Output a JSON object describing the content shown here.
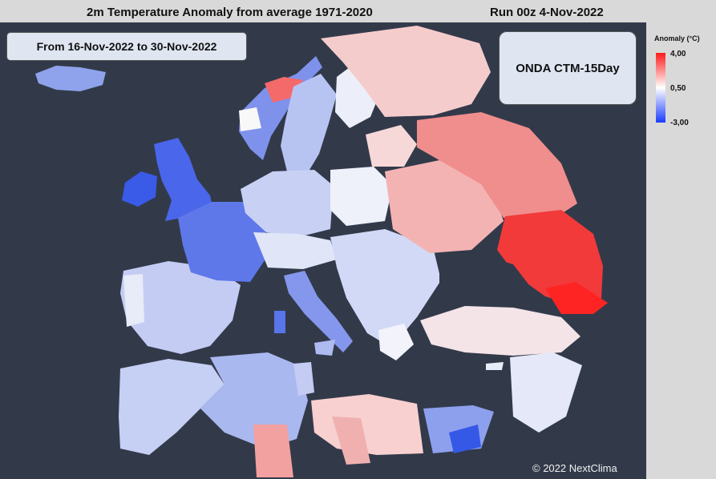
{
  "header": {
    "title": "2m Temperature Anomaly from average 1971-2020",
    "run": "Run 00z 4-Nov-2022"
  },
  "period_label": "From 16-Nov-2022 to 30-Nov-2022",
  "model_label": "ONDA CTM-15Day",
  "copyright": "© 2022 NextClima",
  "legend": {
    "title": "Anomaly (°C)",
    "max_label": "4,00",
    "mid_label": "0,50",
    "min_label": "-3,00",
    "max": 4.0,
    "mid": 0.5,
    "min": -3.0,
    "colors": {
      "warm": "#ff1a1a",
      "neutral": "#ffffff",
      "cold": "#1a3cff"
    }
  },
  "colors": {
    "ocean": "#323a4a",
    "page": "#d9d9d9"
  }
}
